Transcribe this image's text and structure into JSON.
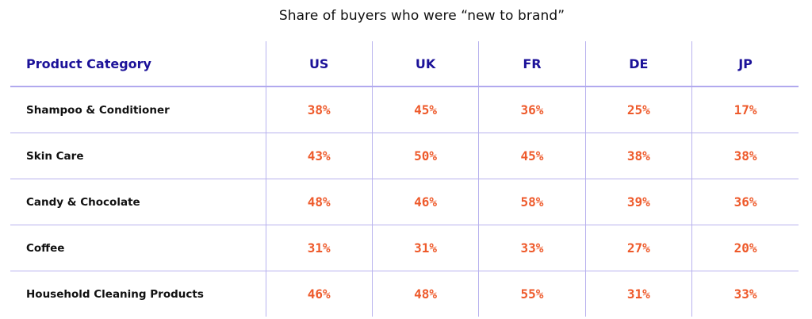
{
  "chart_data": {
    "type": "table",
    "title": "Share of buyers who were “new to brand”",
    "row_header": "Product Category",
    "columns": [
      "US",
      "UK",
      "FR",
      "DE",
      "JP"
    ],
    "rows": [
      {
        "category": "Shampoo & Conditioner",
        "values": [
          "38%",
          "45%",
          "36%",
          "25%",
          "17%"
        ]
      },
      {
        "category": "Skin Care",
        "values": [
          "43%",
          "50%",
          "45%",
          "38%",
          "38%"
        ]
      },
      {
        "category": "Candy & Chocolate",
        "values": [
          "48%",
          "46%",
          "58%",
          "39%",
          "36%"
        ]
      },
      {
        "category": "Coffee",
        "values": [
          "31%",
          "31%",
          "33%",
          "27%",
          "20%"
        ]
      },
      {
        "category": "Household Cleaning Products",
        "values": [
          "46%",
          "48%",
          "55%",
          "31%",
          "33%"
        ]
      }
    ]
  },
  "colors": {
    "header_text": "#1c1299",
    "value_text": "#ee5a2b",
    "grid_lines": "#b8b2ee",
    "category_text": "#111111"
  }
}
